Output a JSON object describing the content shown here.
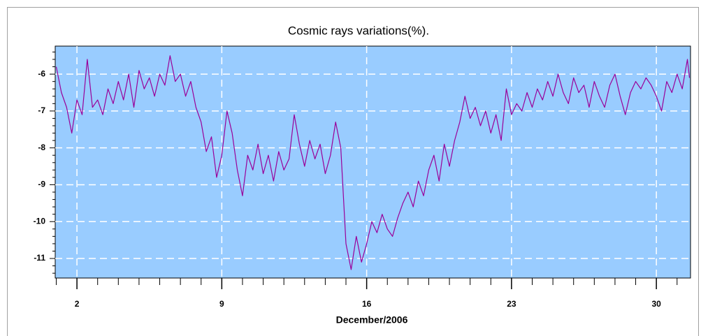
{
  "chart_data": {
    "type": "line",
    "title": "Cosmic rays variations(%).",
    "xlabel": "December/2006",
    "xlim": [
      0.95,
      31.65
    ],
    "xticks": [
      2,
      9,
      16,
      23,
      30
    ],
    "xminorticks": [
      1,
      3,
      4,
      5,
      6,
      7,
      8,
      10,
      11,
      12,
      13,
      14,
      15,
      17,
      18,
      19,
      20,
      21,
      22,
      24,
      25,
      26,
      27,
      28,
      29,
      31
    ],
    "ylim": [
      -11.53,
      -5.24
    ],
    "yticks": [
      -11,
      -10,
      -9,
      -8,
      -7,
      -6
    ],
    "yminorticks": [
      -11.4,
      -11.2,
      -10.8,
      -10.6,
      -10.4,
      -10.2,
      -9.8,
      -9.6,
      -9.4,
      -9.2,
      -8.8,
      -8.6,
      -8.4,
      -8.2,
      -7.8,
      -7.6,
      -7.4,
      -7.2,
      -6.8,
      -6.6,
      -6.4,
      -6.2,
      -5.8,
      -5.6,
      -5.4
    ],
    "grid": true,
    "background": "#99ccff",
    "series": [
      {
        "color": "#990099",
        "x": [
          1,
          1.25,
          1.5,
          1.75,
          2,
          2.25,
          2.5,
          2.75,
          3,
          3.25,
          3.5,
          3.75,
          4,
          4.25,
          4.5,
          4.75,
          5,
          5.25,
          5.5,
          5.75,
          6,
          6.25,
          6.5,
          6.75,
          7,
          7.25,
          7.5,
          7.75,
          8,
          8.25,
          8.5,
          8.75,
          9,
          9.25,
          9.5,
          9.75,
          10,
          10.25,
          10.5,
          10.75,
          11,
          11.25,
          11.5,
          11.75,
          12,
          12.25,
          12.5,
          12.75,
          13,
          13.25,
          13.5,
          13.75,
          14,
          14.25,
          14.5,
          14.75,
          15,
          15.25,
          15.5,
          15.75,
          16,
          16.25,
          16.5,
          16.75,
          17,
          17.25,
          17.5,
          17.75,
          18,
          18.25,
          18.5,
          18.75,
          19,
          19.25,
          19.5,
          19.75,
          20,
          20.25,
          20.5,
          20.75,
          21,
          21.25,
          21.5,
          21.75,
          22,
          22.25,
          22.5,
          22.75,
          23,
          23.25,
          23.5,
          23.75,
          24,
          24.25,
          24.5,
          24.75,
          25,
          25.25,
          25.5,
          25.75,
          26,
          26.25,
          26.5,
          26.75,
          27,
          27.25,
          27.5,
          27.75,
          28,
          28.25,
          28.5,
          28.75,
          29,
          29.25,
          29.5,
          29.75,
          30,
          30.25,
          30.5,
          30.75,
          31,
          31.25,
          31.5,
          31.6
        ],
        "values": [
          -5.8,
          -6.5,
          -6.9,
          -7.6,
          -6.7,
          -7.1,
          -5.6,
          -6.9,
          -6.7,
          -7.1,
          -6.4,
          -6.8,
          -6.2,
          -6.7,
          -6.0,
          -6.9,
          -5.9,
          -6.4,
          -6.1,
          -6.6,
          -6.0,
          -6.3,
          -5.5,
          -6.2,
          -6.0,
          -6.6,
          -6.2,
          -6.9,
          -7.3,
          -8.1,
          -7.7,
          -8.8,
          -8.2,
          -7.0,
          -7.6,
          -8.6,
          -9.3,
          -8.2,
          -8.6,
          -7.9,
          -8.7,
          -8.2,
          -8.9,
          -8.1,
          -8.6,
          -8.3,
          -7.1,
          -7.9,
          -8.5,
          -7.8,
          -8.3,
          -7.9,
          -8.7,
          -8.2,
          -7.3,
          -8.0,
          -10.6,
          -11.3,
          -10.4,
          -11.1,
          -10.6,
          -10.0,
          -10.3,
          -9.8,
          -10.2,
          -10.4,
          -9.9,
          -9.5,
          -9.2,
          -9.6,
          -8.9,
          -9.3,
          -8.6,
          -8.2,
          -8.9,
          -7.9,
          -8.5,
          -7.8,
          -7.3,
          -6.6,
          -7.2,
          -6.9,
          -7.4,
          -7.0,
          -7.6,
          -7.1,
          -7.8,
          -6.4,
          -7.1,
          -6.8,
          -7.0,
          -6.5,
          -6.9,
          -6.4,
          -6.7,
          -6.2,
          -6.6,
          -6.0,
          -6.5,
          -6.8,
          -6.1,
          -6.5,
          -6.3,
          -6.9,
          -6.2,
          -6.6,
          -6.9,
          -6.3,
          -6.0,
          -6.6,
          -7.1,
          -6.5,
          -6.2,
          -6.4,
          -6.1,
          -6.3,
          -6.6,
          -7.0,
          -6.2,
          -6.5,
          -6.0,
          -6.4,
          -5.6,
          -6.1
        ]
      }
    ]
  }
}
